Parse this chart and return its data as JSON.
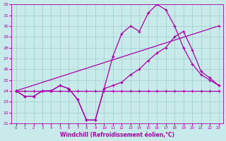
{
  "xlabel": "Windchill (Refroidissement éolien,°C)",
  "xlim": [
    -0.5,
    23.5
  ],
  "ylim": [
    21,
    32
  ],
  "xticks": [
    0,
    1,
    2,
    3,
    4,
    5,
    6,
    7,
    8,
    9,
    10,
    11,
    12,
    13,
    14,
    15,
    16,
    17,
    18,
    19,
    20,
    21,
    22,
    23
  ],
  "yticks": [
    21,
    22,
    23,
    24,
    25,
    26,
    27,
    28,
    29,
    30,
    31,
    32
  ],
  "bg_color": "#c8eaea",
  "grid_color": "#a0cccc",
  "line_color": "#aa00aa",
  "series": {
    "flat": {
      "x": [
        0,
        1,
        2,
        3,
        4,
        5,
        6,
        7,
        8,
        9,
        10,
        11,
        12,
        13,
        14,
        15,
        16,
        17,
        18,
        19,
        20,
        21,
        22,
        23
      ],
      "y": [
        24,
        24,
        24,
        24,
        24,
        24,
        24,
        24,
        24,
        24,
        24,
        24,
        24,
        24,
        24,
        24,
        24,
        24,
        24,
        24,
        24,
        24,
        24,
        24
      ]
    },
    "diagonal": {
      "x": [
        0,
        23
      ],
      "y": [
        24,
        30
      ]
    },
    "dip_rise": {
      "x": [
        0,
        1,
        2,
        3,
        4,
        5,
        6,
        7,
        8,
        9,
        10,
        11,
        12,
        13,
        14,
        15,
        16,
        17,
        18,
        19,
        20,
        21,
        22,
        23
      ],
      "y": [
        24,
        23.5,
        23.5,
        24,
        24,
        24.5,
        24.2,
        23.2,
        21.3,
        21.3,
        24.2,
        27.2,
        29.3,
        30.0,
        29.5,
        31.2,
        32.0,
        31.5,
        30.0,
        28.0,
        26.5,
        25.5,
        25.0,
        24.5
      ]
    },
    "rise_fall": {
      "x": [
        0,
        1,
        2,
        3,
        4,
        5,
        6,
        7,
        8,
        9,
        10,
        11,
        12,
        13,
        14,
        15,
        16,
        17,
        18,
        19,
        20,
        21,
        22,
        23
      ],
      "y": [
        24,
        23.5,
        23.5,
        24,
        24,
        24.5,
        24.2,
        23.2,
        21.3,
        21.3,
        24.2,
        24.5,
        24.8,
        25.5,
        26.0,
        26.8,
        27.5,
        28.0,
        29.0,
        29.5,
        27.8,
        25.8,
        25.2,
        24.5
      ]
    }
  }
}
